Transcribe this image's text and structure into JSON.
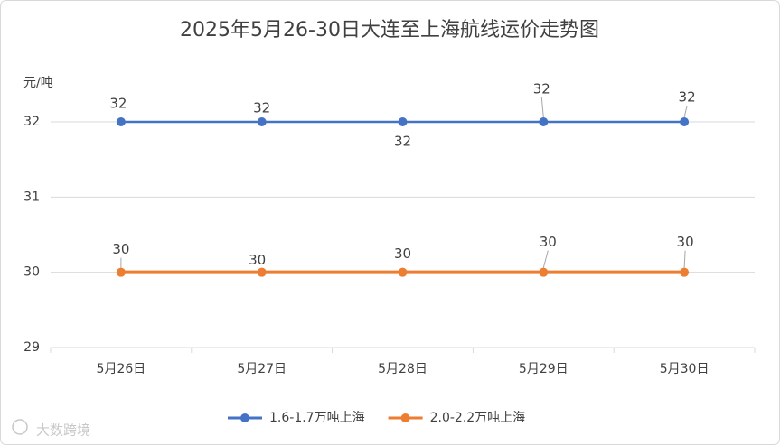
{
  "chart_data": {
    "type": "line",
    "title": "2025年5月26-30日大连至上海航线运价走势图",
    "y_label": "元/吨",
    "categories": [
      "5月26日",
      "5月27日",
      "5月28日",
      "5月29日",
      "5月30日"
    ],
    "series": [
      {
        "name": "1.6-1.7万吨上海",
        "color": "#4472c4",
        "values": [
          32,
          32,
          32,
          32,
          32
        ]
      },
      {
        "name": "2.0-2.2万吨上海",
        "color": "#ed7d31",
        "values": [
          30,
          30,
          30,
          30,
          30
        ]
      }
    ],
    "ylim": [
      29,
      32
    ],
    "yticks": [
      29,
      30,
      31,
      32
    ],
    "grid": true,
    "legend": "bottom",
    "watermark": "大数跨境"
  }
}
